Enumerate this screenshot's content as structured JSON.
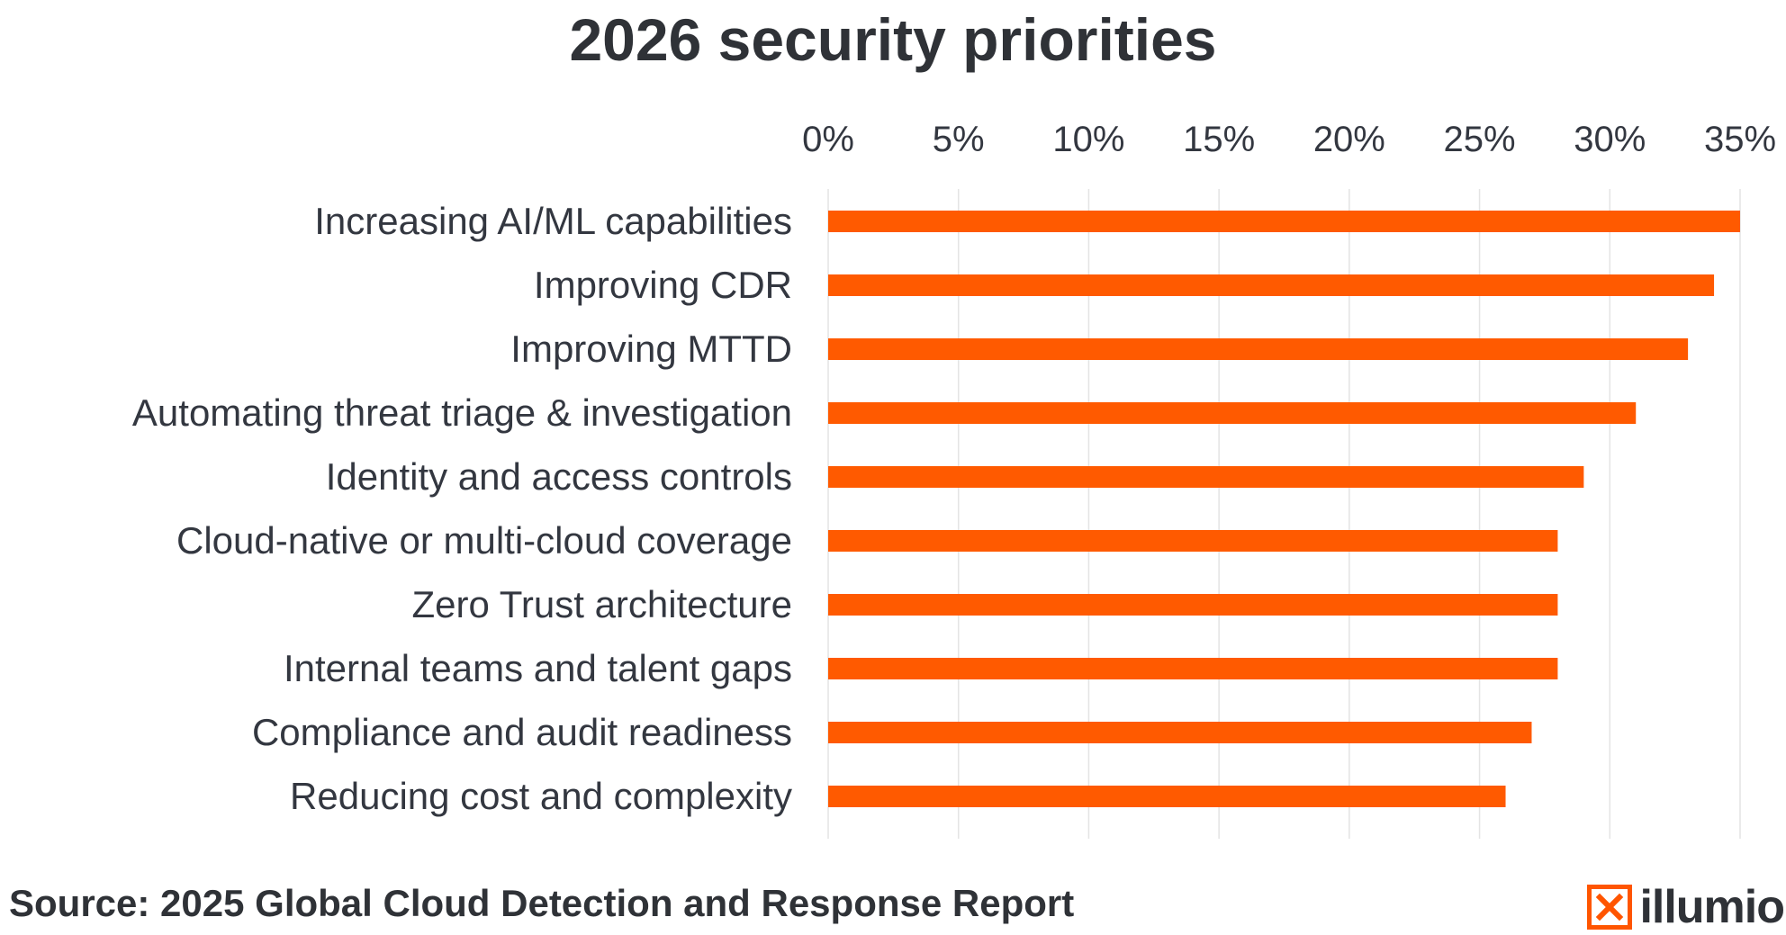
{
  "chart_data": {
    "type": "bar",
    "orientation": "horizontal",
    "title": "2026 security priorities",
    "categories": [
      "Increasing AI/ML capabilities",
      "Improving CDR",
      "Improving MTTD",
      "Automating threat triage & investigation",
      "Identity and access controls",
      "Cloud-native or multi-cloud coverage",
      "Zero Trust architecture",
      "Internal teams and talent gaps",
      "Compliance and audit readiness",
      "Reducing cost and complexity"
    ],
    "values": [
      35,
      34,
      33,
      31,
      29,
      28,
      28,
      28,
      27,
      26
    ],
    "xlim": [
      0,
      35
    ],
    "x_ticks": [
      0,
      5,
      10,
      15,
      20,
      25,
      30,
      35
    ],
    "tick_suffix": "%",
    "axis_position": "top",
    "grid": true,
    "bar_color": "#ff5a00"
  },
  "footer": {
    "source": "Source:  2025 Global Cloud Detection and Response Report",
    "logo_text": "illumio",
    "logo_color": "#ff5500"
  }
}
